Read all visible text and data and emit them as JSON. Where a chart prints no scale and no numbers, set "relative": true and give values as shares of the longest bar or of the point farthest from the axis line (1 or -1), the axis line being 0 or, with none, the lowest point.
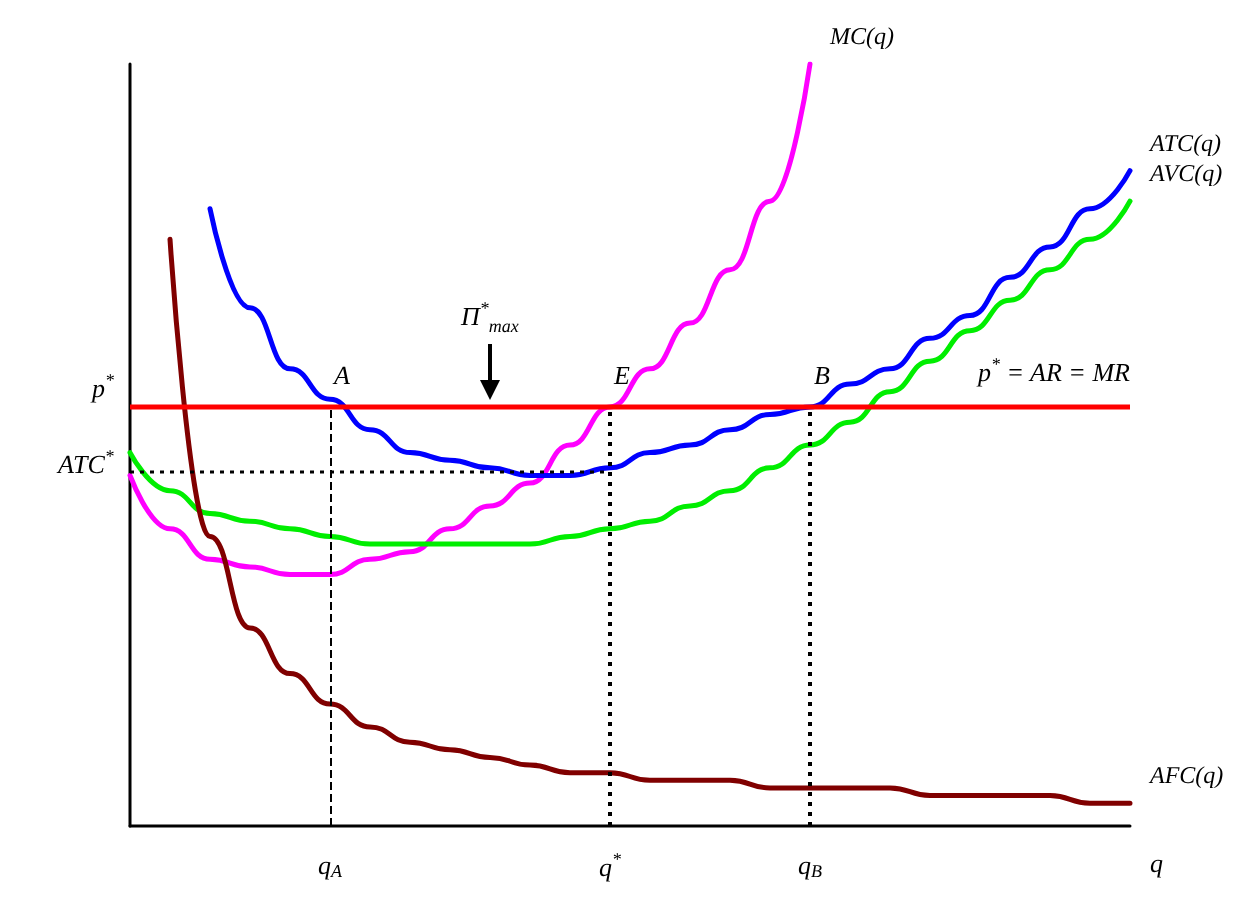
{
  "chart_data": {
    "type": "line",
    "relative": true,
    "xlabel": "q",
    "categories": [
      null,
      null,
      null,
      null,
      null,
      "q$_{A}$",
      null,
      null,
      null,
      null,
      null,
      null,
      "q$^{*}$",
      null,
      null,
      null,
      null,
      "q$_{B}$",
      null,
      null,
      null,
      null,
      null,
      null,
      null,
      null
    ],
    "series": [
      {
        "name": "MC(q)",
        "color": "#ff00ff",
        "values": [
          0.46,
          0.39,
          0.35,
          0.34,
          0.33,
          0.33,
          0.35,
          0.36,
          0.39,
          0.42,
          0.45,
          0.5,
          0.55,
          0.6,
          0.66,
          0.73,
          0.82,
          1.0,
          null,
          null,
          null,
          null,
          null,
          null,
          null,
          null
        ]
      },
      {
        "name": "ATC(q)",
        "color": "#0000ff",
        "values": [
          null,
          null,
          0.81,
          0.68,
          0.6,
          0.56,
          0.52,
          0.49,
          0.48,
          0.47,
          0.46,
          0.46,
          0.47,
          0.49,
          0.5,
          0.52,
          0.54,
          0.55,
          0.58,
          0.6,
          0.64,
          0.67,
          0.72,
          0.76,
          0.81,
          0.86
        ]
      },
      {
        "name": "AVC(q)",
        "color": "#00ee00",
        "values": [
          0.49,
          0.44,
          0.41,
          0.4,
          0.39,
          0.38,
          0.37,
          0.37,
          0.37,
          0.37,
          0.37,
          0.38,
          0.39,
          0.4,
          0.42,
          0.44,
          0.47,
          0.5,
          0.53,
          0.57,
          0.61,
          0.65,
          0.69,
          0.73,
          0.77,
          0.82
        ]
      },
      {
        "name": "AFC(q)",
        "color": "#800000",
        "values": [
          null,
          0.77,
          0.38,
          0.26,
          0.2,
          0.16,
          0.13,
          0.11,
          0.1,
          0.09,
          0.08,
          0.07,
          0.07,
          0.06,
          0.06,
          0.06,
          0.05,
          0.05,
          0.05,
          0.05,
          0.04,
          0.04,
          0.04,
          0.04,
          0.03,
          0.03
        ]
      }
    ],
    "ref_lines": [
      {
        "axis": "y",
        "value": 0.549,
        "label": "p$^{*}$",
        "color": "#ff0000",
        "line_style": "solid"
      },
      {
        "axis": "y",
        "value": 0.465,
        "label": "ATC$^{*}$",
        "color": "#000000",
        "line_style": "dotted"
      },
      {
        "axis": "x",
        "value": "q$_{A}$",
        "color": "#000000",
        "line_style": "dashed"
      },
      {
        "axis": "x",
        "value": "q$^{*}$",
        "color": "#000000",
        "line_style": "dotted"
      },
      {
        "axis": "x",
        "value": "q$_{B}$",
        "color": "#000000",
        "line_style": "dotted"
      }
    ],
    "annotations": [
      {
        "text": "A",
        "x": "q$_{A}$",
        "y": 0.549
      },
      {
        "text": "E",
        "x": "q$^{*}$",
        "y": 0.549
      },
      {
        "text": "B",
        "x": "q$_{B}$",
        "y": 0.549
      },
      "p$^{*}$ = AR = MR",
      "Π$^{*}$$_{max}$"
    ]
  }
}
